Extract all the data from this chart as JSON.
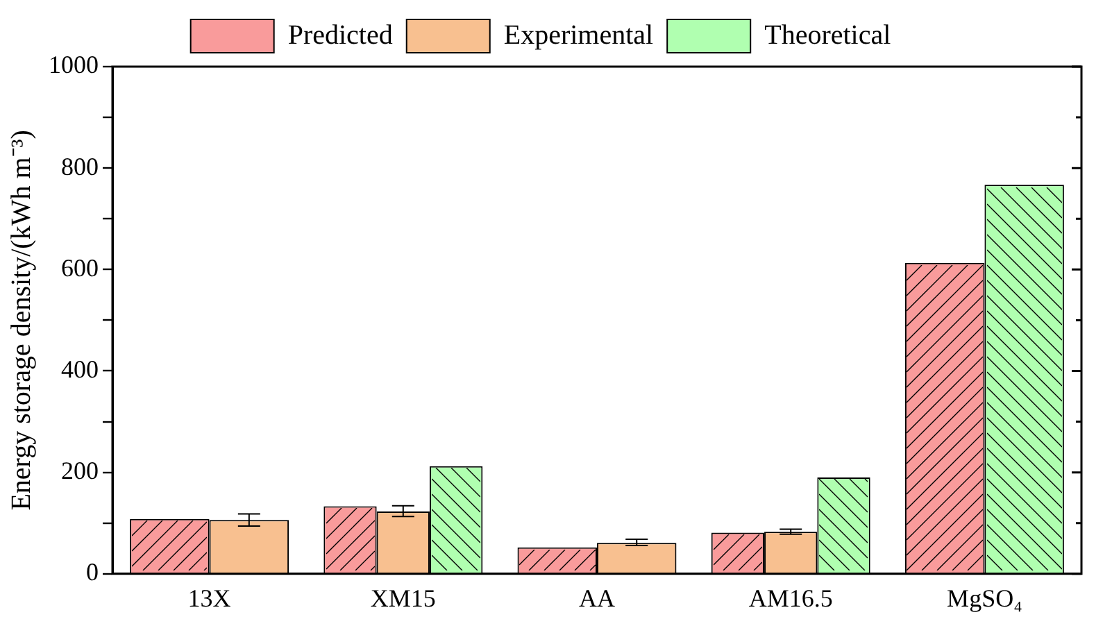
{
  "chart_data": {
    "type": "bar",
    "ylabel": "Energy storage density/(kWh m⁻³)",
    "categories": [
      "13X",
      "XM15",
      "AA",
      "AM16.5",
      "MgSO₄"
    ],
    "series": [
      {
        "name": "Predicted",
        "color": "#f99b9b",
        "values": [
          108,
          133,
          52,
          81,
          613
        ]
      },
      {
        "name": "Experimental",
        "color": "#f8c090",
        "values": [
          106,
          123,
          61,
          83,
          null
        ],
        "errors": [
          [
            94,
            118
          ],
          [
            113,
            134
          ],
          [
            56,
            68
          ],
          [
            78,
            88
          ],
          null
        ]
      },
      {
        "name": "Theoretical",
        "color": "#b0ffb0",
        "values": [
          null,
          212,
          null,
          190,
          767
        ]
      }
    ],
    "ylim": [
      0,
      1000
    ],
    "yticks": [
      0,
      {
        "value": 100,
        "label": null
      },
      200,
      {
        "value": 300,
        "label": null
      },
      400,
      {
        "value": 500,
        "label": null
      },
      600,
      {
        "value": 700,
        "label": null
      },
      800,
      {
        "value": 900,
        "label": null
      },
      1000
    ],
    "grid": false,
    "legend": "top"
  }
}
